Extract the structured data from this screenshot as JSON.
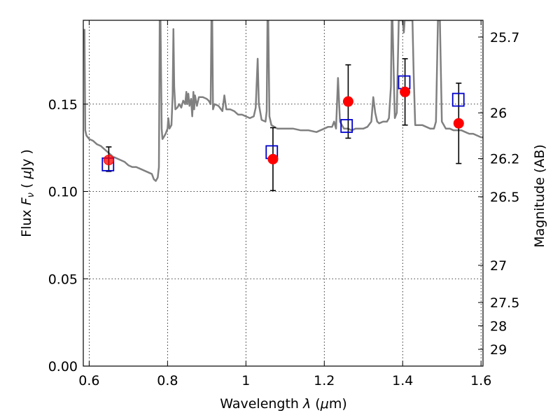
{
  "chart_data": {
    "type": "scatter",
    "xlabel": "Wavelength  λ (μm)",
    "ylabel": "Flux  F_ν  ( μJy )",
    "ylabel_right": "Magnitude (AB)",
    "xlim": [
      0.585,
      1.605
    ],
    "ylim": [
      0.0,
      0.198
    ],
    "grid": true,
    "x_ticks": [
      {
        "value": 0.6,
        "label": "0.6"
      },
      {
        "value": 0.8,
        "label": "0.8"
      },
      {
        "value": 1.0,
        "label": "1"
      },
      {
        "value": 1.2,
        "label": "1.2"
      },
      {
        "value": 1.4,
        "label": "1.4"
      },
      {
        "value": 1.6,
        "label": "1.6"
      }
    ],
    "y_ticks": [
      {
        "value": 0.0,
        "label": "0.00"
      },
      {
        "value": 0.05,
        "label": "0.05"
      },
      {
        "value": 0.1,
        "label": "0.10"
      },
      {
        "value": 0.15,
        "label": "0.15"
      }
    ],
    "right_axis_ticks": [
      {
        "flux": 0.1884,
        "label": "25.7"
      },
      {
        "flux": 0.145,
        "label": "26"
      },
      {
        "flux": 0.1188,
        "label": "26.2"
      },
      {
        "flux": 0.097,
        "label": "26.5"
      },
      {
        "flux": 0.0577,
        "label": "27"
      },
      {
        "flux": 0.0364,
        "label": "27.5"
      },
      {
        "flux": 0.0231,
        "label": "28"
      },
      {
        "flux": 0.0096,
        "label": "29"
      }
    ],
    "series": [
      {
        "role": "model_spectrum",
        "color": "#808080",
        "points": [
          [
            0.588,
            0.193
          ],
          [
            0.59,
            0.135
          ],
          [
            0.593,
            0.132
          ],
          [
            0.6,
            0.13
          ],
          [
            0.61,
            0.129
          ],
          [
            0.62,
            0.127
          ],
          [
            0.63,
            0.126
          ],
          [
            0.64,
            0.124
          ],
          [
            0.65,
            0.122
          ],
          [
            0.66,
            0.12
          ],
          [
            0.67,
            0.119
          ],
          [
            0.68,
            0.118
          ],
          [
            0.69,
            0.117
          ],
          [
            0.7,
            0.115
          ],
          [
            0.71,
            0.114
          ],
          [
            0.72,
            0.114
          ],
          [
            0.73,
            0.113
          ],
          [
            0.74,
            0.112
          ],
          [
            0.75,
            0.111
          ],
          [
            0.76,
            0.11
          ],
          [
            0.765,
            0.107
          ],
          [
            0.77,
            0.106
          ],
          [
            0.775,
            0.108
          ],
          [
            0.778,
            0.114
          ],
          [
            0.78,
            0.198
          ],
          [
            0.782,
            0.198
          ],
          [
            0.785,
            0.136
          ],
          [
            0.787,
            0.13
          ],
          [
            0.79,
            0.131
          ],
          [
            0.795,
            0.133
          ],
          [
            0.8,
            0.136
          ],
          [
            0.802,
            0.142
          ],
          [
            0.805,
            0.136
          ],
          [
            0.81,
            0.138
          ],
          [
            0.813,
            0.155
          ],
          [
            0.815,
            0.193
          ],
          [
            0.817,
            0.16
          ],
          [
            0.82,
            0.147
          ],
          [
            0.825,
            0.148
          ],
          [
            0.83,
            0.15
          ],
          [
            0.835,
            0.148
          ],
          [
            0.84,
            0.152
          ],
          [
            0.845,
            0.15
          ],
          [
            0.848,
            0.157
          ],
          [
            0.85,
            0.15
          ],
          [
            0.853,
            0.156
          ],
          [
            0.856,
            0.149
          ],
          [
            0.86,
            0.153
          ],
          [
            0.863,
            0.143
          ],
          [
            0.866,
            0.157
          ],
          [
            0.868,
            0.147
          ],
          [
            0.87,
            0.155
          ],
          [
            0.875,
            0.149
          ],
          [
            0.88,
            0.154
          ],
          [
            0.89,
            0.154
          ],
          [
            0.9,
            0.153
          ],
          [
            0.905,
            0.152
          ],
          [
            0.91,
            0.15
          ],
          [
            0.912,
            0.198
          ],
          [
            0.914,
            0.198
          ],
          [
            0.916,
            0.147
          ],
          [
            0.92,
            0.15
          ],
          [
            0.93,
            0.149
          ],
          [
            0.94,
            0.146
          ],
          [
            0.945,
            0.155
          ],
          [
            0.95,
            0.147
          ],
          [
            0.96,
            0.147
          ],
          [
            0.97,
            0.146
          ],
          [
            0.98,
            0.144
          ],
          [
            0.99,
            0.144
          ],
          [
            1.0,
            0.143
          ],
          [
            1.01,
            0.142
          ],
          [
            1.02,
            0.143
          ],
          [
            1.025,
            0.148
          ],
          [
            1.03,
            0.176
          ],
          [
            1.033,
            0.15
          ],
          [
            1.04,
            0.141
          ],
          [
            1.05,
            0.14
          ],
          [
            1.053,
            0.146
          ],
          [
            1.055,
            0.198
          ],
          [
            1.057,
            0.198
          ],
          [
            1.06,
            0.143
          ],
          [
            1.065,
            0.138
          ],
          [
            1.08,
            0.136
          ],
          [
            1.1,
            0.136
          ],
          [
            1.12,
            0.136
          ],
          [
            1.14,
            0.135
          ],
          [
            1.16,
            0.135
          ],
          [
            1.18,
            0.134
          ],
          [
            1.19,
            0.135
          ],
          [
            1.2,
            0.136
          ],
          [
            1.21,
            0.137
          ],
          [
            1.22,
            0.137
          ],
          [
            1.225,
            0.14
          ],
          [
            1.23,
            0.136
          ],
          [
            1.235,
            0.165
          ],
          [
            1.24,
            0.14
          ],
          [
            1.25,
            0.136
          ],
          [
            1.26,
            0.136
          ],
          [
            1.27,
            0.135
          ],
          [
            1.28,
            0.136
          ],
          [
            1.29,
            0.136
          ],
          [
            1.3,
            0.136
          ],
          [
            1.31,
            0.137
          ],
          [
            1.32,
            0.14
          ],
          [
            1.325,
            0.154
          ],
          [
            1.33,
            0.145
          ],
          [
            1.335,
            0.14
          ],
          [
            1.34,
            0.139
          ],
          [
            1.35,
            0.14
          ],
          [
            1.36,
            0.14
          ],
          [
            1.365,
            0.142
          ],
          [
            1.37,
            0.16
          ],
          [
            1.372,
            0.198
          ],
          [
            1.374,
            0.198
          ],
          [
            1.378,
            0.16
          ],
          [
            1.38,
            0.142
          ],
          [
            1.385,
            0.145
          ],
          [
            1.39,
            0.198
          ],
          [
            1.4,
            0.198
          ],
          [
            1.403,
            0.191
          ],
          [
            1.405,
            0.198
          ],
          [
            1.425,
            0.198
          ],
          [
            1.428,
            0.168
          ],
          [
            1.432,
            0.138
          ],
          [
            1.44,
            0.138
          ],
          [
            1.45,
            0.138
          ],
          [
            1.46,
            0.137
          ],
          [
            1.47,
            0.136
          ],
          [
            1.48,
            0.136
          ],
          [
            1.485,
            0.14
          ],
          [
            1.49,
            0.198
          ],
          [
            1.495,
            0.198
          ],
          [
            1.5,
            0.14
          ],
          [
            1.51,
            0.136
          ],
          [
            1.52,
            0.136
          ],
          [
            1.53,
            0.135
          ],
          [
            1.54,
            0.135
          ],
          [
            1.55,
            0.135
          ],
          [
            1.56,
            0.134
          ],
          [
            1.57,
            0.133
          ],
          [
            1.58,
            0.133
          ],
          [
            1.59,
            0.132
          ],
          [
            1.6,
            0.131
          ],
          [
            1.605,
            0.131
          ]
        ]
      },
      {
        "role": "model_photometry",
        "marker": "open-square",
        "color": "#0000cc",
        "x": [
          0.648,
          1.066,
          1.257,
          1.404,
          1.542
        ],
        "y": [
          0.1155,
          0.1225,
          0.1375,
          0.1625,
          0.1525
        ]
      },
      {
        "role": "observed_photometry",
        "marker": "filled-circle",
        "color": "#ff0000",
        "x": [
          0.65,
          1.069,
          1.261,
          1.406,
          1.543
        ],
        "y": [
          0.118,
          0.1185,
          0.1515,
          0.157,
          0.139
        ],
        "yerr_low": [
          0.0065,
          0.018,
          0.021,
          0.019,
          0.023
        ],
        "yerr_high": [
          0.0075,
          0.018,
          0.021,
          0.019,
          0.023
        ]
      }
    ]
  }
}
